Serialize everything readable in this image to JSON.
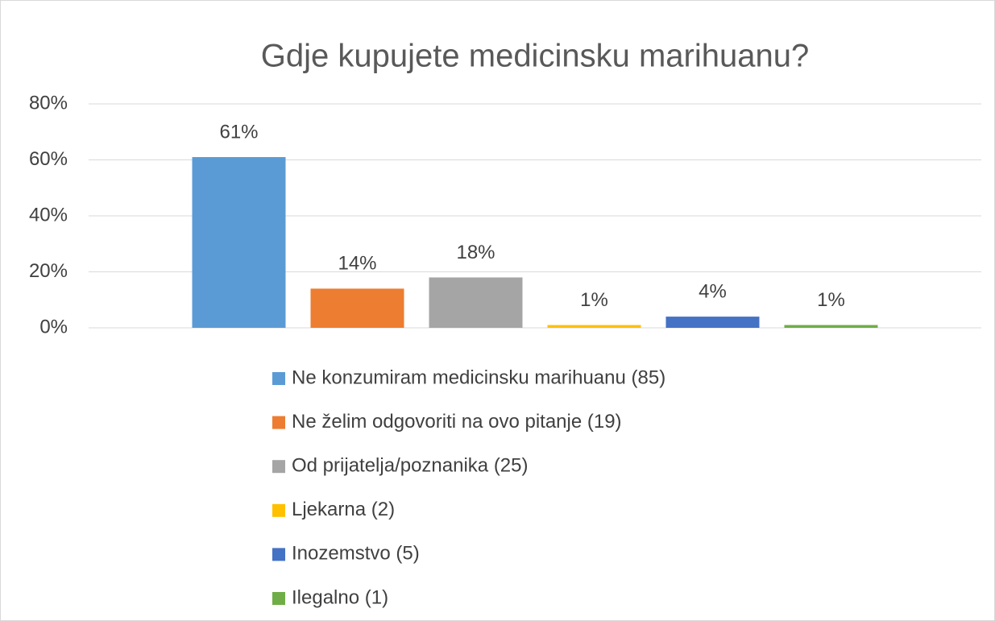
{
  "chart_data": {
    "type": "bar",
    "title": "Gdje kupujete medicinsku marihuanu?",
    "series": [
      {
        "name": "Ne konzumiram medicinsku marihuanu (85)",
        "color": "#5b9bd5",
        "values": [
          61
        ],
        "value_labels": [
          "61%"
        ]
      },
      {
        "name": "Ne želim odgovoriti na ovo pitanje (19)",
        "color": "#ed7d31",
        "values": [
          14
        ],
        "value_labels": [
          "14%"
        ]
      },
      {
        "name": "Od prijatelja/poznanika (25)",
        "color": "#a5a5a5",
        "values": [
          18
        ],
        "value_labels": [
          "18%"
        ]
      },
      {
        "name": "Ljekarna (2)",
        "color": "#ffc000",
        "values": [
          1
        ],
        "value_labels": [
          "1%"
        ]
      },
      {
        "name": "Inozemstvo (5)",
        "color": "#4472c4",
        "values": [
          4
        ],
        "value_labels": [
          "4%"
        ]
      },
      {
        "name": "Ilegalno (1)",
        "color": "#70ad47",
        "values": [
          1
        ],
        "value_labels": [
          "1%"
        ]
      }
    ],
    "ylim": [
      0,
      80
    ],
    "yticks": [
      {
        "value": 0,
        "label": "0%"
      },
      {
        "value": 20,
        "label": "20%"
      },
      {
        "value": 40,
        "label": "40%"
      },
      {
        "value": 60,
        "label": "60%"
      },
      {
        "value": 80,
        "label": "80%"
      }
    ],
    "grid": true,
    "legend": "bottom"
  }
}
